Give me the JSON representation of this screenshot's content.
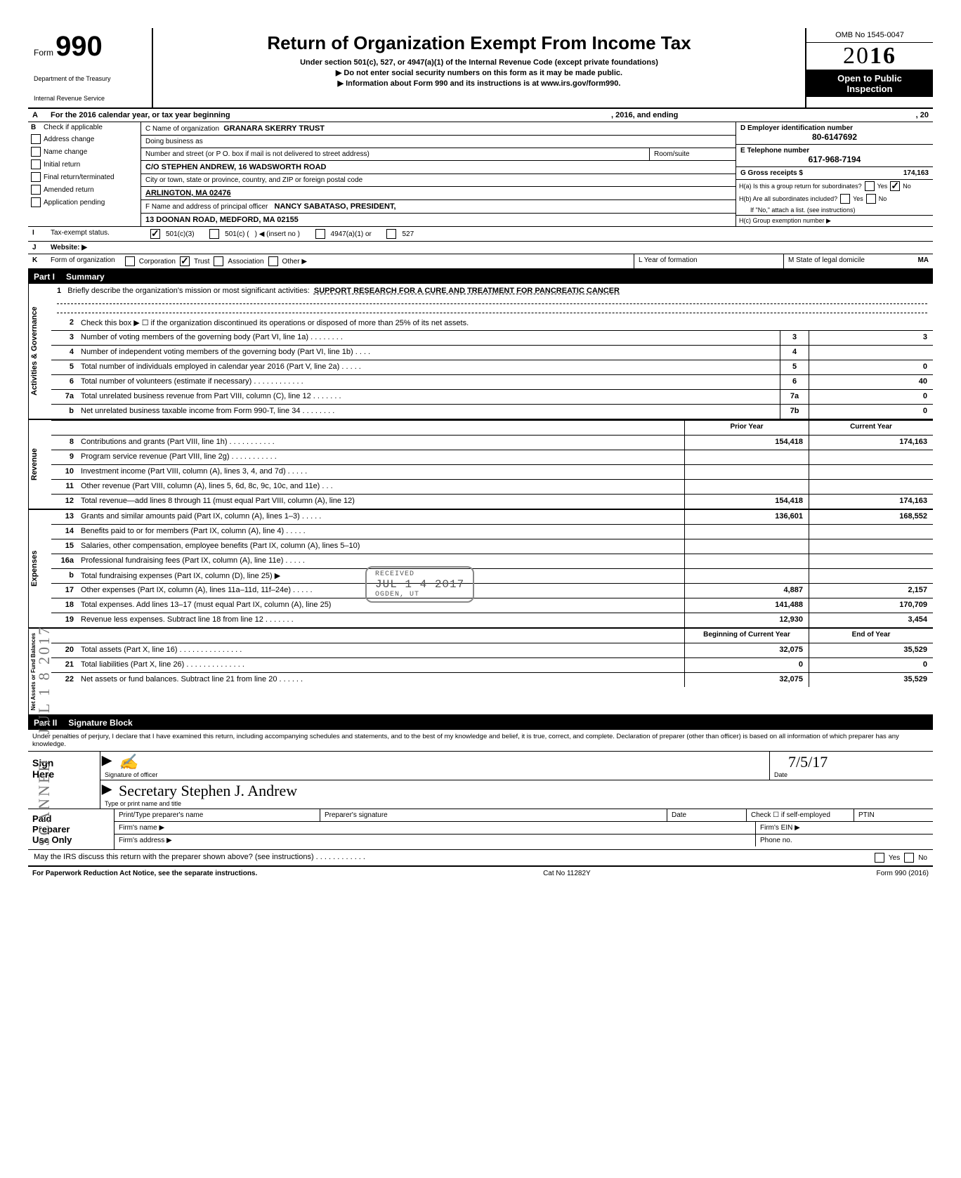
{
  "header": {
    "form_label": "Form",
    "form_number": "990",
    "dept1": "Department of the Treasury",
    "dept2": "Internal Revenue Service",
    "title": "Return of Organization Exempt From Income Tax",
    "sub1": "Under section 501(c), 527, or 4947(a)(1) of the Internal Revenue Code (except private foundations)",
    "sub2": "▶ Do not enter social security numbers on this form as it may be made public.",
    "sub3": "▶ Information about Form 990 and its instructions is at www.irs.gov/form990.",
    "omb": "OMB No 1545-0047",
    "year_prefix": "20",
    "year_suffix": "16",
    "open1": "Open to Public",
    "open2": "Inspection"
  },
  "rowA": {
    "letter": "A",
    "text1": "For the 2016 calendar year, or tax year beginning",
    "text2": ", 2016, and ending",
    "text3": ", 20"
  },
  "colB": {
    "letter": "B",
    "header": "Check if applicable",
    "items": [
      "Address change",
      "Name change",
      "Initial return",
      "Final return/terminated",
      "Amended return",
      "Application pending"
    ]
  },
  "colC": {
    "name_label": "C Name of organization",
    "name_val": "GRANARA SKERRY TRUST",
    "dba_label": "Doing business as",
    "street_label": "Number and street (or P O. box if mail is not delivered to street address)",
    "room_label": "Room/suite",
    "street_val": "c/o STEPHEN ANDREW, 16 WADSWORTH ROAD",
    "city_label": "City or town, state or province, country, and ZIP or foreign postal code",
    "city_val": "ARLINGTON, MA 02476",
    "f_label": "F Name and address of principal officer",
    "f_val1": "NANCY SABATASO, PRESIDENT,",
    "f_val2": "13 DOONAN ROAD, MEDFORD, MA 02155"
  },
  "colRight": {
    "d_label": "D Employer identification number",
    "d_val": "80-6147692",
    "e_label": "E Telephone number",
    "e_val": "617-968-7194",
    "g_label": "G Gross receipts $",
    "g_val": "174,163",
    "ha": "H(a) Is this a group return for subordinates?",
    "hb": "H(b) Are all subordinates included?",
    "hb_note": "If \"No,\" attach a list. (see instructions)",
    "hc": "H(c) Group exemption number ▶",
    "yes": "Yes",
    "no": "No"
  },
  "rowI": {
    "letter": "I",
    "label": "Tax-exempt status.",
    "opt1": "501(c)(3)",
    "opt2": "501(c) (",
    "opt2b": ") ◀ (insert no )",
    "opt3": "4947(a)(1) or",
    "opt4": "527"
  },
  "rowJ": {
    "letter": "J",
    "label": "Website: ▶"
  },
  "rowK": {
    "letter": "K",
    "label": "Form of organization",
    "opts": [
      "Corporation",
      "Trust",
      "Association",
      "Other ▶"
    ],
    "l_label": "L Year of formation",
    "m_label": "M State of legal domicile",
    "m_val": "MA"
  },
  "part1": {
    "num": "Part I",
    "title": "Summary"
  },
  "sections": {
    "gov": {
      "side": "Activities & Governance",
      "mission_label": "Briefly describe the organization's mission or most significant activities:",
      "mission_val": "SUPPORT RESEARCH FOR A CURE AND TREATMENT FOR PANCREATIC CANCER",
      "line2": "Check this box ▶ ☐ if the organization discontinued its operations or disposed of more than 25% of its net assets.",
      "lines": [
        {
          "n": "3",
          "d": "Number of voting members of the governing body (Part VI, line 1a) .  .  .  .  .  .  .  .",
          "box": "3",
          "v": "3"
        },
        {
          "n": "4",
          "d": "Number of independent voting members of the governing body (Part VI, line 1b)  .  .  .  .",
          "box": "4",
          "v": ""
        },
        {
          "n": "5",
          "d": "Total number of individuals employed in calendar year 2016 (Part V, line 2a)  .  .  .  .  .",
          "box": "5",
          "v": "0"
        },
        {
          "n": "6",
          "d": "Total number of volunteers (estimate if necessary)  .  .  .  .  .  .  .  .  .  .  .  .",
          "box": "6",
          "v": "40"
        },
        {
          "n": "7a",
          "d": "Total unrelated business revenue from Part VIII, column (C), line 12  .  .  .  .  .  .  .",
          "box": "7a",
          "v": "0"
        },
        {
          "n": "b",
          "d": "Net unrelated business taxable income from Form 990-T, line 34  .  .  .  .  .  .  .  .",
          "box": "7b",
          "v": "0"
        }
      ]
    },
    "rev": {
      "side": "Revenue",
      "hdr_prior": "Prior Year",
      "hdr_curr": "Current Year",
      "lines": [
        {
          "n": "8",
          "d": "Contributions and grants (Part VIII, line 1h) .  .  .  .  .  .  .  .  .  .  .",
          "p": "154,418",
          "c": "174,163"
        },
        {
          "n": "9",
          "d": "Program service revenue (Part VIII, line 2g)  .  .  .  .  .  .  .  .  .  .  .",
          "p": "",
          "c": ""
        },
        {
          "n": "10",
          "d": "Investment income (Part VIII, column (A), lines 3, 4, and 7d)  .  .  .  .  .",
          "p": "",
          "c": ""
        },
        {
          "n": "11",
          "d": "Other revenue (Part VIII, column (A), lines 5, 6d, 8c, 9c, 10c, and 11e) .  .  .",
          "p": "",
          "c": ""
        },
        {
          "n": "12",
          "d": "Total revenue—add lines 8 through 11 (must equal Part VIII, column (A), line 12)",
          "p": "154,418",
          "c": "174,163"
        }
      ]
    },
    "exp": {
      "side": "Expenses",
      "lines": [
        {
          "n": "13",
          "d": "Grants and similar amounts paid (Part IX, column (A), lines 1–3) .  .  .  .  .",
          "p": "136,601",
          "c": "168,552"
        },
        {
          "n": "14",
          "d": "Benefits paid to or for members (Part IX, column (A), line 4)  .  .  .  .  .",
          "p": "",
          "c": ""
        },
        {
          "n": "15",
          "d": "Salaries, other compensation, employee benefits (Part IX, column (A), lines 5–10)",
          "p": "",
          "c": ""
        },
        {
          "n": "16a",
          "d": "Professional fundraising fees (Part IX, column (A),  line 11e)  .  .  .  .  .",
          "p": "",
          "c": ""
        },
        {
          "n": "b",
          "d": "Total fundraising expenses (Part IX, column (D), line 25) ▶",
          "p": "",
          "c": ""
        },
        {
          "n": "17",
          "d": "Other expenses (Part IX, column (A), lines 11a–11d, 11f–24e)  .  .  .  .  .",
          "p": "4,887",
          "c": "2,157"
        },
        {
          "n": "18",
          "d": "Total expenses. Add lines 13–17 (must equal Part IX, column (A), line 25)",
          "p": "141,488",
          "c": "170,709"
        },
        {
          "n": "19",
          "d": "Revenue less expenses. Subtract line 18 from line 12  .  .  .  .  .  .  .",
          "p": "12,930",
          "c": "3,454"
        }
      ]
    },
    "net": {
      "side": "Net Assets or\nFund Balances",
      "hdr_prior": "Beginning of Current Year",
      "hdr_curr": "End of Year",
      "lines": [
        {
          "n": "20",
          "d": "Total assets (Part X, line 16)  .  .  .  .  .  .  .  .  .  .  .  .  .  .  .",
          "p": "32,075",
          "c": "35,529"
        },
        {
          "n": "21",
          "d": "Total liabilities (Part X, line 26) .  .  .  .  .  .  .  .  .  .  .  .  .  .",
          "p": "0",
          "c": "0"
        },
        {
          "n": "22",
          "d": "Net assets or fund balances. Subtract line 21 from line 20  .  .  .  .  .  .",
          "p": "32,075",
          "c": "35,529"
        }
      ]
    }
  },
  "stamps": {
    "received": "JUL 1 4 2017",
    "ogden": "OGDEN, UT",
    "side_date": "JUL 1 8 2017",
    "scanned": "SCANNED"
  },
  "part2": {
    "num": "Part II",
    "title": "Signature Block"
  },
  "sig": {
    "intro": "Under penalties of perjury, I declare that I have examined this return, including accompanying schedules and statements, and to the best of my knowledge and belief, it is true, correct, and complete. Declaration of preparer (other than officer) is based on all information of which preparer has any knowledge.",
    "sign": "Sign",
    "here": "Here",
    "sig_caption": "Signature of officer",
    "date_caption": "Date",
    "date_val": "7/5/17",
    "name_script": "Secretary   Stephen J. Andrew",
    "name_caption": "Type or print name and title",
    "paid": "Paid",
    "preparer": "Preparer",
    "useonly": "Use Only",
    "prep_name": "Print/Type preparer's name",
    "prep_sig": "Preparer's signature",
    "prep_date": "Date",
    "check_if": "Check ☐ if self-employed",
    "ptin": "PTIN",
    "firm_name": "Firm's name   ▶",
    "firm_ein": "Firm's EIN ▶",
    "firm_addr": "Firm's address ▶",
    "phone": "Phone no.",
    "discuss": "May the IRS discuss this return with the preparer shown above? (see instructions)  .  .  .  .  .  .  .  .  .  .  .  .",
    "yes": "Yes",
    "no": "No"
  },
  "footer": {
    "left": "For Paperwork Reduction Act Notice, see the separate instructions.",
    "mid": "Cat No  11282Y",
    "right": "Form 990 (2016)"
  }
}
